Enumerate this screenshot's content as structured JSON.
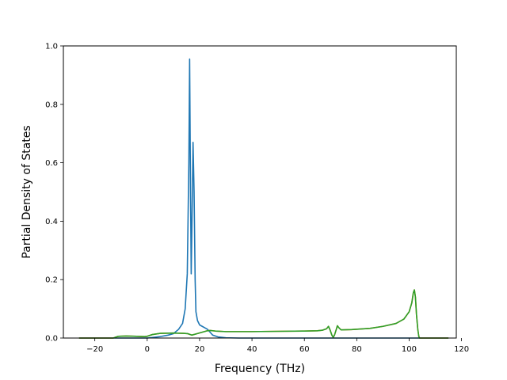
{
  "chart_data": {
    "type": "line",
    "xlabel": "Frequency (THz)",
    "ylabel": "Partial Density of States",
    "xlim": [
      -32,
      118
    ],
    "ylim": [
      0,
      1.0
    ],
    "xticks": [
      -20,
      0,
      20,
      40,
      60,
      80,
      100,
      120
    ],
    "xtick_labels": [
      "−20",
      "0",
      "20",
      "40",
      "60",
      "80",
      "100",
      "120"
    ],
    "yticks": [
      0.0,
      0.2,
      0.4,
      0.6,
      0.8,
      1.0
    ],
    "ytick_labels": [
      "0.0",
      "0.2",
      "0.4",
      "0.6",
      "0.8",
      "1.0"
    ],
    "grid": false,
    "legend": "none",
    "series": [
      {
        "color": "#1f77b4",
        "points": [
          [
            -26,
            0
          ],
          [
            0,
            0
          ],
          [
            5,
            0.005
          ],
          [
            8,
            0.01
          ],
          [
            10,
            0.015
          ],
          [
            12,
            0.03
          ],
          [
            13.5,
            0.05
          ],
          [
            14.5,
            0.1
          ],
          [
            15.3,
            0.22
          ],
          [
            15.9,
            0.6
          ],
          [
            16.2,
            0.955
          ],
          [
            16.5,
            0.55
          ],
          [
            16.8,
            0.22
          ],
          [
            17.1,
            0.4
          ],
          [
            17.5,
            0.67
          ],
          [
            17.9,
            0.5
          ],
          [
            18.3,
            0.2
          ],
          [
            18.6,
            0.09
          ],
          [
            19.2,
            0.06
          ],
          [
            20,
            0.045
          ],
          [
            21,
            0.04
          ],
          [
            22,
            0.035
          ],
          [
            23,
            0.03
          ],
          [
            24,
            0.02
          ],
          [
            25,
            0.01
          ],
          [
            27,
            0.004
          ],
          [
            30,
            0.001
          ],
          [
            35,
            0
          ],
          [
            115,
            0
          ]
        ]
      },
      {
        "color": "#ff7f0e",
        "points": [
          [
            -26,
            0
          ],
          [
            -13,
            0
          ],
          [
            -11,
            0.006
          ],
          [
            -8,
            0.007
          ],
          [
            -4,
            0.006
          ],
          [
            -1,
            0.005
          ],
          [
            0,
            0.006
          ],
          [
            2,
            0.012
          ],
          [
            5,
            0.016
          ],
          [
            10,
            0.017
          ],
          [
            14,
            0.016
          ],
          [
            15.5,
            0.015
          ],
          [
            17,
            0.01
          ],
          [
            19,
            0.015
          ],
          [
            21,
            0.02
          ],
          [
            23,
            0.025
          ],
          [
            24,
            0.026
          ],
          [
            26,
            0.024
          ],
          [
            30,
            0.022
          ],
          [
            40,
            0.022
          ],
          [
            50,
            0.023
          ],
          [
            60,
            0.024
          ],
          [
            65,
            0.025
          ],
          [
            67,
            0.027
          ],
          [
            68.5,
            0.032
          ],
          [
            69.2,
            0.04
          ],
          [
            69.8,
            0.028
          ],
          [
            70.5,
            0.01
          ],
          [
            71,
            0.003
          ],
          [
            71.5,
            0.01
          ],
          [
            72.2,
            0.03
          ],
          [
            72.6,
            0.042
          ],
          [
            73.2,
            0.035
          ],
          [
            74,
            0.028
          ],
          [
            78,
            0.029
          ],
          [
            85,
            0.033
          ],
          [
            90,
            0.04
          ],
          [
            95,
            0.05
          ],
          [
            98,
            0.065
          ],
          [
            100,
            0.09
          ],
          [
            101,
            0.12
          ],
          [
            101.6,
            0.155
          ],
          [
            102,
            0.165
          ],
          [
            102.4,
            0.14
          ],
          [
            102.8,
            0.08
          ],
          [
            103.3,
            0.03
          ],
          [
            103.7,
            0.005
          ],
          [
            104,
            0
          ],
          [
            115,
            0
          ]
        ]
      },
      {
        "color": "#2ca02c",
        "points": [
          [
            -26,
            0
          ],
          [
            -13,
            0
          ],
          [
            -11,
            0.006
          ],
          [
            -8,
            0.007
          ],
          [
            -4,
            0.006
          ],
          [
            -1,
            0.005
          ],
          [
            0,
            0.006
          ],
          [
            2,
            0.012
          ],
          [
            5,
            0.016
          ],
          [
            10,
            0.017
          ],
          [
            14,
            0.016
          ],
          [
            15.5,
            0.015
          ],
          [
            17,
            0.01
          ],
          [
            19,
            0.015
          ],
          [
            21,
            0.02
          ],
          [
            23,
            0.025
          ],
          [
            24,
            0.026
          ],
          [
            26,
            0.024
          ],
          [
            30,
            0.022
          ],
          [
            40,
            0.022
          ],
          [
            50,
            0.023
          ],
          [
            60,
            0.024
          ],
          [
            65,
            0.025
          ],
          [
            67,
            0.027
          ],
          [
            68.5,
            0.032
          ],
          [
            69.2,
            0.04
          ],
          [
            69.8,
            0.028
          ],
          [
            70.5,
            0.01
          ],
          [
            71,
            0.003
          ],
          [
            71.5,
            0.01
          ],
          [
            72.2,
            0.03
          ],
          [
            72.6,
            0.042
          ],
          [
            73.2,
            0.035
          ],
          [
            74,
            0.028
          ],
          [
            78,
            0.029
          ],
          [
            85,
            0.033
          ],
          [
            90,
            0.04
          ],
          [
            95,
            0.05
          ],
          [
            98,
            0.065
          ],
          [
            100,
            0.09
          ],
          [
            101,
            0.12
          ],
          [
            101.6,
            0.155
          ],
          [
            102,
            0.165
          ],
          [
            102.4,
            0.14
          ],
          [
            102.8,
            0.08
          ],
          [
            103.3,
            0.03
          ],
          [
            103.7,
            0.005
          ],
          [
            104,
            0
          ],
          [
            115,
            0
          ]
        ]
      }
    ]
  }
}
